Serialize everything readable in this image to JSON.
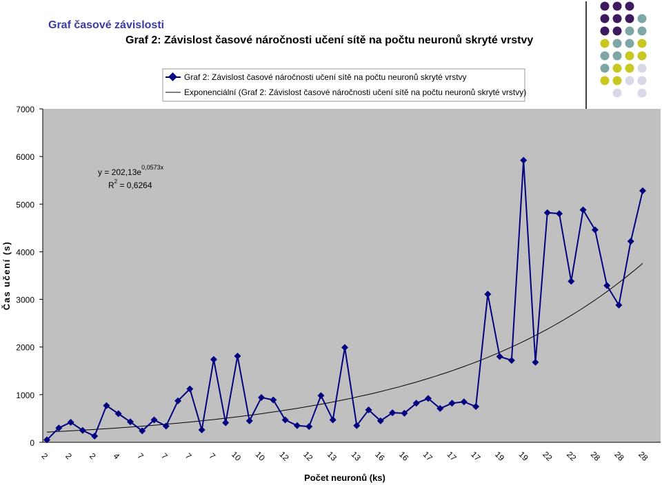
{
  "page_title": "Graf časové závislosti",
  "chart_data": {
    "type": "line",
    "title": "Graf 2: Závislost časové náročnosti učení sítě na počtu neuronů skryté vrstvy",
    "xlabel": "Počet neuronů (ks)",
    "ylabel": "Čas učení (s)",
    "ylim": [
      0,
      7000
    ],
    "yticks": [
      0,
      1000,
      2000,
      3000,
      4000,
      5000,
      6000,
      7000
    ],
    "x_tick_labels": [
      "2",
      "2",
      "2",
      "4",
      "7",
      "7",
      "7",
      "7",
      "10",
      "10",
      "12",
      "12",
      "13",
      "13",
      "16",
      "16",
      "17",
      "17",
      "17",
      "19",
      "19",
      "22",
      "22",
      "28",
      "28",
      "28"
    ],
    "legend": {
      "placement": "top-right",
      "entries": [
        "Graf 2: Závislost časové náročnosti učení sítě na počtu neuronů skryté vrstvy",
        "Exponenciální (Graf 2: Závislost časové náročnosti učení sítě na počtu neuronů skryté vrstvy)"
      ]
    },
    "grid": false,
    "plot_background": "#c0c0c0",
    "series": [
      {
        "name": "Graf 2: Závislost časové náročnosti učení sítě na počtu neuronů skryté vrstvy",
        "color": "#000080",
        "marker": "diamond",
        "values": [
          50,
          300,
          420,
          250,
          130,
          770,
          600,
          430,
          240,
          470,
          340,
          870,
          1120,
          260,
          1740,
          410,
          1810,
          450,
          940,
          890,
          470,
          350,
          330,
          980,
          470,
          1990,
          350,
          680,
          450,
          620,
          610,
          820,
          920,
          710,
          820,
          850,
          750,
          3110,
          1800,
          1720,
          5920,
          1680,
          4820,
          4800,
          3380,
          4880,
          4460,
          3290,
          2880,
          4220,
          5280
        ]
      }
    ],
    "trendline": {
      "type": "exponential",
      "color": "#000000",
      "equation": "y = 202,13e",
      "exponent": "0,0573x",
      "r2_prefix": "R",
      "r2_power": "2",
      "r2_value": " = 0,6264",
      "a": 202.13,
      "b": 0.0573
    }
  },
  "decor": {
    "dots": [
      [
        "#3d1a5e",
        "#3d1a5e",
        "#3d1a5e",
        ""
      ],
      [
        "#3d1a5e",
        "#3d1a5e",
        "#3d1a5e",
        "#7ea6a4"
      ],
      [
        "#3d1a5e",
        "#3d1a5e",
        "#7ea6a4",
        "#7ea6a4"
      ],
      [
        "#c8c820",
        "#7ea6a4",
        "#7ea6a4",
        "#c8c820"
      ],
      [
        "#7ea6a4",
        "#7ea6a4",
        "#c8c820",
        "#c8c820"
      ],
      [
        "#7ea6a4",
        "#c8c820",
        "#c8c820",
        "#d8d8e8"
      ],
      [
        "#c8c820",
        "#c8c820",
        "#d8d8e8",
        "#d8d8e8"
      ],
      [
        "",
        "#d8d8e8",
        "",
        "#d8d8e8"
      ]
    ]
  }
}
